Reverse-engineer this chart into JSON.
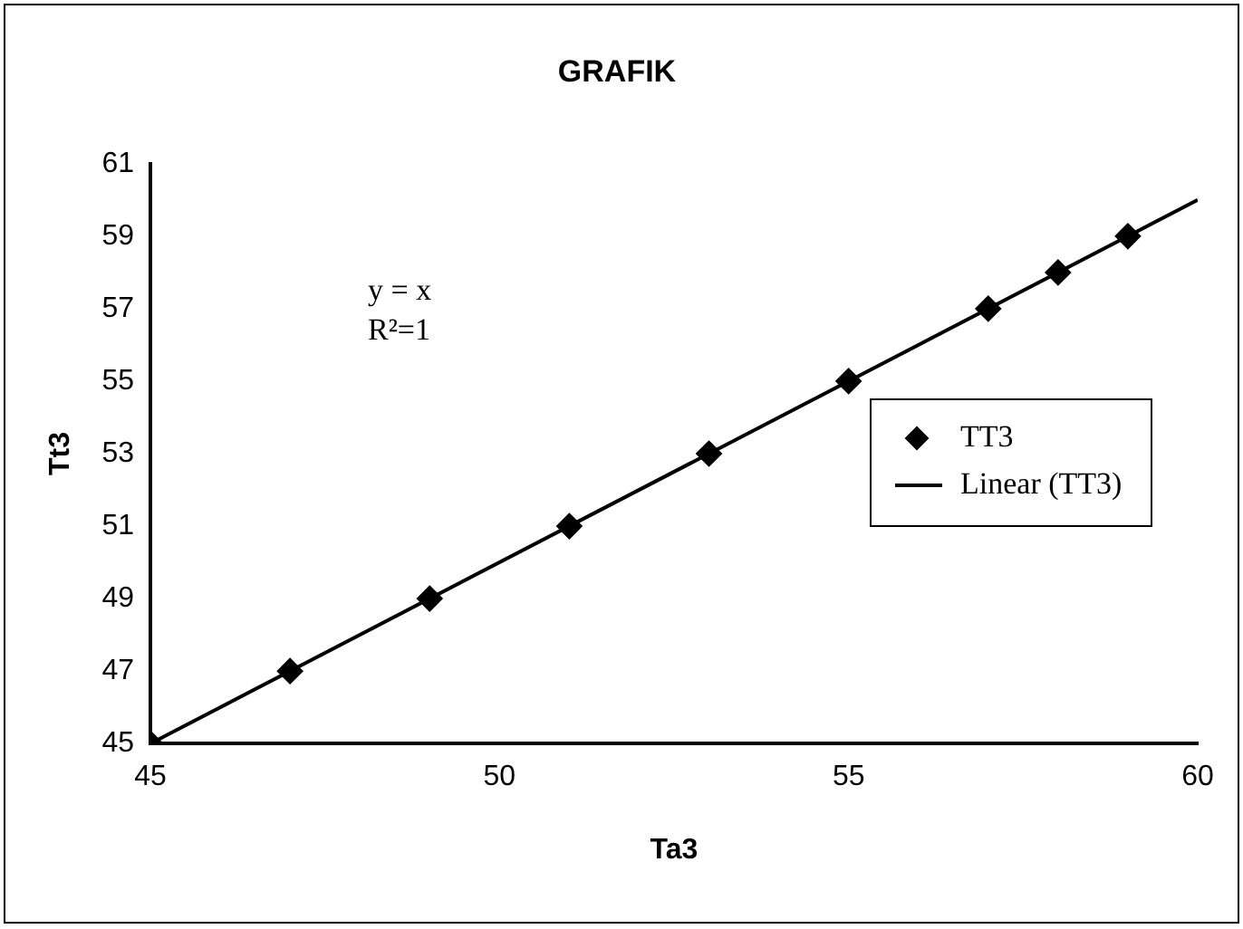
{
  "chart_data": {
    "type": "scatter",
    "title": "GRAFIK",
    "xlabel": "Ta3",
    "ylabel": "Tt3",
    "series": [
      {
        "name": "TT3",
        "color": "#000000",
        "marker": "diamond",
        "x": [
          45,
          47,
          49,
          51,
          53,
          55,
          57,
          58,
          59
        ],
        "values": [
          45,
          47,
          49,
          51,
          53,
          55,
          57,
          58,
          59
        ]
      },
      {
        "name": "Linear (TT3)",
        "type": "line",
        "color": "#000000",
        "marker": "none",
        "line_style": "solid",
        "x": [
          45,
          60
        ],
        "values": [
          45,
          60
        ]
      }
    ],
    "xlim": [
      45,
      60
    ],
    "xticks": [
      45,
      50,
      55,
      60
    ],
    "ylim": [
      45,
      61
    ],
    "yticks": [
      45,
      47,
      49,
      51,
      53,
      55,
      57,
      59,
      61
    ],
    "grid": false,
    "legend": "right",
    "annotations": [
      "y = x",
      "R²=1"
    ]
  }
}
